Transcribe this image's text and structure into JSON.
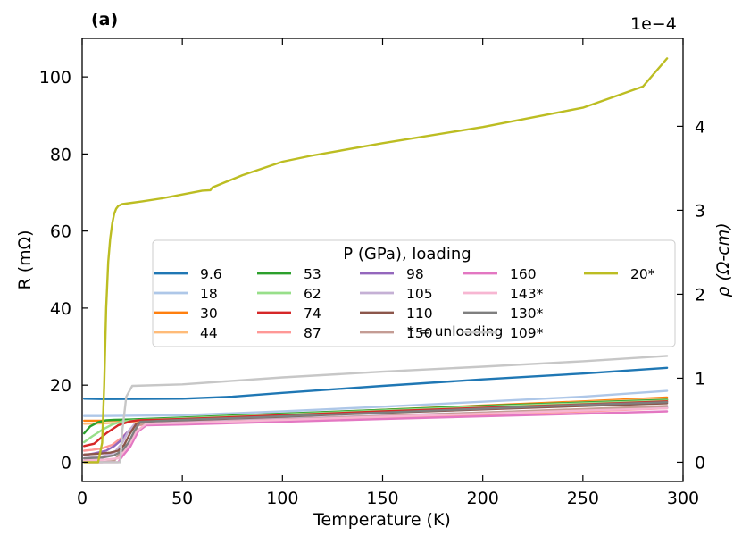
{
  "chart_data": {
    "type": "line",
    "panel_label": "(a)",
    "xlabel": "Temperature (K)",
    "ylabel": "R (mΩ)",
    "y2label": "ρ (Ω-cm)",
    "y2_offset_text": "1e−4",
    "xlim": [
      0,
      300
    ],
    "ylim": [
      -5,
      110
    ],
    "y2lim": [
      -0.2294,
      5.0468
    ],
    "xticks": [
      0,
      50,
      100,
      150,
      200,
      250,
      300
    ],
    "yticks": [
      0,
      20,
      40,
      60,
      80,
      100
    ],
    "y2ticks": [
      0,
      1,
      2,
      3,
      4
    ],
    "legend": {
      "title": "P (GPa), loading",
      "note": "* = unloading",
      "location": "center-right"
    },
    "series": [
      {
        "name": "9.6",
        "color": "#1f77b4",
        "x": [
          1,
          10,
          50,
          75,
          100,
          150,
          200,
          250,
          292
        ],
        "y": [
          16.5,
          16.4,
          16.5,
          17,
          18,
          19.8,
          21.5,
          23,
          24.5
        ]
      },
      {
        "name": "18",
        "color": "#aec7e8",
        "x": [
          1,
          10,
          50,
          100,
          150,
          200,
          250,
          292
        ],
        "y": [
          12,
          12,
          12.2,
          13.2,
          14.4,
          15.7,
          17,
          18.5
        ]
      },
      {
        "name": "30",
        "color": "#ff7f0e",
        "x": [
          1,
          10,
          20,
          50,
          100,
          150,
          200,
          250,
          292
        ],
        "y": [
          10.8,
          10.8,
          10.9,
          11.5,
          12.5,
          13.6,
          14.7,
          15.8,
          16.8
        ]
      },
      {
        "name": "44",
        "color": "#ffbb78",
        "x": [
          1,
          10,
          20,
          50,
          100,
          150,
          200,
          250,
          292
        ],
        "y": [
          10,
          10.1,
          10.3,
          11,
          12.1,
          13.3,
          14.5,
          15.6,
          16.5
        ]
      },
      {
        "name": "53",
        "color": "#2ca02c",
        "x": [
          1,
          4,
          8,
          12,
          16,
          24,
          50,
          100,
          150,
          200,
          250,
          292
        ],
        "y": [
          7.5,
          9.3,
          10.4,
          10.9,
          11,
          11.1,
          11.6,
          12.6,
          13.6,
          14.6,
          15.5,
          16.2
        ]
      },
      {
        "name": "62",
        "color": "#98df8a",
        "x": [
          1,
          5,
          10,
          15,
          20,
          26,
          50,
          100,
          150,
          200,
          250,
          292
        ],
        "y": [
          5.2,
          6.7,
          8.4,
          9.8,
          10.6,
          10.9,
          11.4,
          12.4,
          13.4,
          14.4,
          15.3,
          16
        ]
      },
      {
        "name": "74",
        "color": "#d62728",
        "x": [
          1,
          6,
          12,
          18,
          24,
          28,
          50,
          100,
          150,
          200,
          250,
          292
        ],
        "y": [
          4.2,
          4.8,
          7.5,
          9.6,
          10.6,
          10.9,
          11.2,
          12.2,
          13.2,
          14.1,
          15,
          15.8
        ]
      },
      {
        "name": "87",
        "color": "#ff9896",
        "x": [
          1,
          5,
          10,
          15,
          20,
          24,
          27,
          30,
          50,
          100,
          150,
          200,
          250,
          292
        ],
        "y": [
          3,
          3.2,
          3.6,
          4.5,
          6.5,
          8.5,
          9.5,
          9.7,
          10,
          10.8,
          11.6,
          12.4,
          13.2,
          14
        ]
      },
      {
        "name": "98",
        "color": "#9467bd",
        "x": [
          1,
          6,
          12,
          16,
          19,
          22,
          26,
          30,
          50,
          100,
          150,
          200,
          250,
          292
        ],
        "y": [
          1.8,
          2.3,
          3,
          4.2,
          5.5,
          7.5,
          9.5,
          10,
          10.4,
          11.2,
          12,
          12.8,
          13.6,
          14.2
        ]
      },
      {
        "name": "105",
        "color": "#c5b0d5",
        "x": [
          1,
          10,
          16,
          20,
          23,
          26,
          30,
          50,
          100,
          150,
          200,
          250,
          292
        ],
        "y": [
          1,
          1.5,
          2.5,
          5,
          8,
          9.8,
          10.2,
          10.5,
          11.3,
          12.1,
          12.9,
          13.7,
          14.3
        ]
      },
      {
        "name": "110",
        "color": "#8c564b",
        "x": [
          1,
          8,
          14,
          18,
          21,
          24,
          27,
          30,
          50,
          100,
          150,
          200,
          250,
          292
        ],
        "y": [
          2,
          2.2,
          2.5,
          3,
          4.5,
          7.5,
          10,
          10.5,
          10.9,
          11.8,
          12.8,
          13.7,
          14.6,
          15.3
        ]
      },
      {
        "name": "150",
        "color": "#c49c94",
        "x": [
          1,
          10,
          16,
          19,
          22,
          25,
          28,
          50,
          100,
          150,
          200,
          250,
          292
        ],
        "y": [
          0,
          0,
          0.3,
          2.5,
          4,
          5.8,
          9.8,
          10.2,
          11.1,
          12,
          12.9,
          13.8,
          14.6
        ]
      },
      {
        "name": "160",
        "color": "#e377c2",
        "x": [
          1,
          10,
          18,
          20,
          24,
          28,
          32,
          50,
          100,
          150,
          200,
          250,
          292
        ],
        "y": [
          0,
          0,
          0,
          1.5,
          4,
          8,
          9.6,
          9.8,
          10.5,
          11.2,
          11.9,
          12.6,
          13.2
        ]
      },
      {
        "name": "143*",
        "color": "#f7b6d2",
        "x": [
          1,
          10,
          18,
          21,
          24,
          27,
          32,
          50,
          100,
          150,
          200,
          250,
          292
        ],
        "y": [
          0.5,
          0.6,
          1,
          3,
          5,
          8,
          10,
          10.2,
          11,
          11.8,
          12.6,
          13.4,
          14
        ]
      },
      {
        "name": "130*",
        "color": "#7f7f7f",
        "x": [
          1,
          10,
          16,
          20,
          23,
          26,
          29,
          50,
          100,
          150,
          200,
          250,
          292
        ],
        "y": [
          1,
          1.2,
          1.8,
          3,
          5,
          8,
          10.5,
          11,
          11.9,
          12.9,
          13.9,
          14.9,
          15.6
        ]
      },
      {
        "name": "109*",
        "color": "#c7c7c7",
        "x": [
          1,
          10,
          19,
          20,
          22,
          25,
          50,
          100,
          150,
          200,
          250,
          292
        ],
        "y": [
          0,
          0,
          0,
          8,
          17,
          19.8,
          20.2,
          22,
          23.5,
          24.8,
          26.2,
          27.6
        ]
      },
      {
        "name": "20*",
        "color": "#bcbd22",
        "x": [
          1,
          3,
          8,
          10,
          11,
          12,
          13,
          14,
          15,
          16,
          17,
          18,
          20,
          30,
          40,
          50,
          60,
          64,
          65,
          80,
          100,
          114,
          150,
          200,
          250,
          280,
          292
        ],
        "y": [
          0,
          0,
          0,
          5,
          20,
          40,
          52,
          58,
          62,
          64.5,
          65.8,
          66.5,
          67,
          67.7,
          68.5,
          69.5,
          70.5,
          70.6,
          71.3,
          74.5,
          78,
          79.5,
          82.8,
          87,
          92,
          97.5,
          104.8
        ]
      }
    ]
  }
}
